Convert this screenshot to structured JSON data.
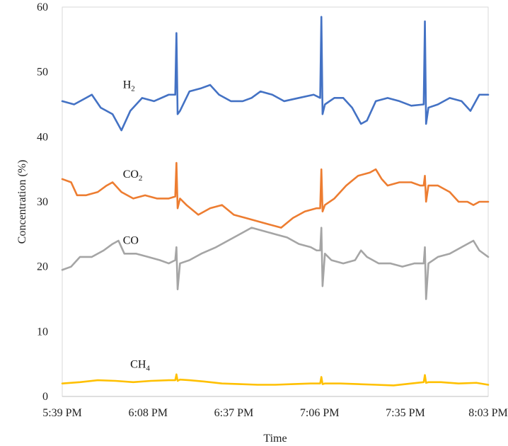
{
  "chart_data": {
    "type": "line",
    "title": "",
    "xlabel": "Time",
    "ylabel": "Concentration (%)",
    "x_ticks": [
      "5:39 PM",
      "6:08 PM",
      "6:37 PM",
      "7:06 PM",
      "7:35 PM",
      "8:03 PM"
    ],
    "y_ticks": [
      0,
      10,
      20,
      30,
      40,
      50,
      60
    ],
    "ylim": [
      0,
      60
    ],
    "x_minutes_from_start": [
      0,
      29,
      58,
      87,
      116,
      144
    ],
    "series": [
      {
        "name": "H2",
        "label_main": "H",
        "label_sub": "2",
        "color": "#4472C4",
        "points": [
          [
            0,
            45.5
          ],
          [
            4,
            45.0
          ],
          [
            8,
            46.0
          ],
          [
            10,
            46.5
          ],
          [
            13,
            44.5
          ],
          [
            17,
            43.5
          ],
          [
            20,
            41.0
          ],
          [
            23,
            44.0
          ],
          [
            27,
            46.0
          ],
          [
            31,
            45.5
          ],
          [
            36,
            46.5
          ],
          [
            38.2,
            46.5
          ],
          [
            38.6,
            56.0
          ],
          [
            39.0,
            43.5
          ],
          [
            39.8,
            44.0
          ],
          [
            43,
            47.0
          ],
          [
            47,
            47.5
          ],
          [
            50,
            48.0
          ],
          [
            53,
            46.5
          ],
          [
            57,
            45.5
          ],
          [
            61,
            45.5
          ],
          [
            64,
            46.0
          ],
          [
            67,
            47.0
          ],
          [
            71,
            46.5
          ],
          [
            75,
            45.5
          ],
          [
            80,
            46.0
          ],
          [
            85,
            46.5
          ],
          [
            87.2,
            46.0
          ],
          [
            87.6,
            58.5
          ],
          [
            88.0,
            43.5
          ],
          [
            88.8,
            45.0
          ],
          [
            92,
            46.0
          ],
          [
            95,
            46.0
          ],
          [
            98,
            44.5
          ],
          [
            101,
            42.0
          ],
          [
            103,
            42.5
          ],
          [
            106,
            45.5
          ],
          [
            110,
            46.0
          ],
          [
            114,
            45.5
          ],
          [
            118,
            44.8
          ],
          [
            122.2,
            45.0
          ],
          [
            122.6,
            57.8
          ],
          [
            123.0,
            42.0
          ],
          [
            123.8,
            44.5
          ],
          [
            127,
            45.0
          ],
          [
            131,
            46.0
          ],
          [
            135,
            45.5
          ],
          [
            138,
            44.0
          ],
          [
            141,
            46.5
          ],
          [
            144,
            46.5
          ]
        ]
      },
      {
        "name": "CO2",
        "label_main": "CO",
        "label_sub": "2",
        "color": "#ED7D31",
        "points": [
          [
            0,
            33.5
          ],
          [
            3,
            33.0
          ],
          [
            5,
            31.0
          ],
          [
            8,
            31.0
          ],
          [
            12,
            31.5
          ],
          [
            15,
            32.5
          ],
          [
            17,
            33.0
          ],
          [
            20,
            31.5
          ],
          [
            24,
            30.5
          ],
          [
            28,
            31.0
          ],
          [
            32,
            30.5
          ],
          [
            36,
            30.5
          ],
          [
            38.2,
            30.8
          ],
          [
            38.6,
            36.0
          ],
          [
            39.0,
            29.0
          ],
          [
            39.8,
            30.5
          ],
          [
            42,
            29.5
          ],
          [
            46,
            28.0
          ],
          [
            50,
            29.0
          ],
          [
            54,
            29.5
          ],
          [
            58,
            28.0
          ],
          [
            62,
            27.5
          ],
          [
            66,
            27.0
          ],
          [
            70,
            26.5
          ],
          [
            74,
            26.0
          ],
          [
            78,
            27.5
          ],
          [
            82,
            28.5
          ],
          [
            86,
            29.0
          ],
          [
            87.2,
            29.0
          ],
          [
            87.6,
            35.0
          ],
          [
            88.0,
            28.5
          ],
          [
            88.8,
            29.5
          ],
          [
            92,
            30.5
          ],
          [
            96,
            32.5
          ],
          [
            100,
            34.0
          ],
          [
            104,
            34.5
          ],
          [
            106,
            35.0
          ],
          [
            108,
            33.5
          ],
          [
            110,
            32.5
          ],
          [
            114,
            33.0
          ],
          [
            118,
            33.0
          ],
          [
            121,
            32.5
          ],
          [
            122.2,
            32.5
          ],
          [
            122.6,
            34.0
          ],
          [
            123.0,
            30.0
          ],
          [
            123.8,
            32.5
          ],
          [
            127,
            32.5
          ],
          [
            131,
            31.5
          ],
          [
            134,
            30.0
          ],
          [
            137,
            30.0
          ],
          [
            139,
            29.5
          ],
          [
            141,
            30.0
          ],
          [
            144,
            30.0
          ]
        ]
      },
      {
        "name": "CO",
        "label_main": "CO",
        "label_sub": "",
        "color": "#A5A5A5",
        "points": [
          [
            0,
            19.5
          ],
          [
            3,
            20.0
          ],
          [
            6,
            21.5
          ],
          [
            10,
            21.5
          ],
          [
            14,
            22.5
          ],
          [
            17,
            23.5
          ],
          [
            19,
            24.0
          ],
          [
            21,
            22.0
          ],
          [
            25,
            22.0
          ],
          [
            29,
            21.5
          ],
          [
            33,
            21.0
          ],
          [
            36,
            20.5
          ],
          [
            38.2,
            21.0
          ],
          [
            38.6,
            23.0
          ],
          [
            39.0,
            16.5
          ],
          [
            39.8,
            20.5
          ],
          [
            43,
            21.0
          ],
          [
            47,
            22.0
          ],
          [
            52,
            23.0
          ],
          [
            56,
            24.0
          ],
          [
            60,
            25.0
          ],
          [
            64,
            26.0
          ],
          [
            68,
            25.5
          ],
          [
            72,
            25.0
          ],
          [
            76,
            24.5
          ],
          [
            80,
            23.5
          ],
          [
            84,
            23.0
          ],
          [
            86,
            22.5
          ],
          [
            87.2,
            22.5
          ],
          [
            87.6,
            26.0
          ],
          [
            88.0,
            17.0
          ],
          [
            88.8,
            22.0
          ],
          [
            91,
            21.0
          ],
          [
            95,
            20.5
          ],
          [
            99,
            21.0
          ],
          [
            101,
            22.5
          ],
          [
            103,
            21.5
          ],
          [
            107,
            20.5
          ],
          [
            111,
            20.5
          ],
          [
            115,
            20.0
          ],
          [
            119,
            20.5
          ],
          [
            121,
            20.5
          ],
          [
            122.2,
            20.5
          ],
          [
            122.6,
            23.0
          ],
          [
            123.0,
            15.0
          ],
          [
            123.8,
            20.5
          ],
          [
            127,
            21.5
          ],
          [
            131,
            22.0
          ],
          [
            135,
            23.0
          ],
          [
            139,
            24.0
          ],
          [
            141,
            22.5
          ],
          [
            144,
            21.5
          ]
        ]
      },
      {
        "name": "CH4",
        "label_main": "CH",
        "label_sub": "4",
        "color": "#FFC000",
        "points": [
          [
            0,
            2.0
          ],
          [
            6,
            2.2
          ],
          [
            12,
            2.5
          ],
          [
            18,
            2.4
          ],
          [
            24,
            2.2
          ],
          [
            30,
            2.4
          ],
          [
            36,
            2.5
          ],
          [
            38.2,
            2.5
          ],
          [
            38.6,
            3.4
          ],
          [
            39.0,
            2.4
          ],
          [
            39.8,
            2.6
          ],
          [
            43,
            2.5
          ],
          [
            48,
            2.3
          ],
          [
            54,
            2.0
          ],
          [
            60,
            1.9
          ],
          [
            66,
            1.8
          ],
          [
            72,
            1.8
          ],
          [
            78,
            1.9
          ],
          [
            84,
            2.0
          ],
          [
            87.2,
            2.0
          ],
          [
            87.6,
            3.0
          ],
          [
            88.0,
            1.9
          ],
          [
            88.8,
            2.0
          ],
          [
            94,
            2.0
          ],
          [
            100,
            1.9
          ],
          [
            106,
            1.8
          ],
          [
            112,
            1.7
          ],
          [
            118,
            2.0
          ],
          [
            122.2,
            2.2
          ],
          [
            122.6,
            3.3
          ],
          [
            123.0,
            2.1
          ],
          [
            123.8,
            2.2
          ],
          [
            128,
            2.2
          ],
          [
            134,
            2.0
          ],
          [
            140,
            2.1
          ],
          [
            144,
            1.8
          ]
        ]
      }
    ]
  }
}
